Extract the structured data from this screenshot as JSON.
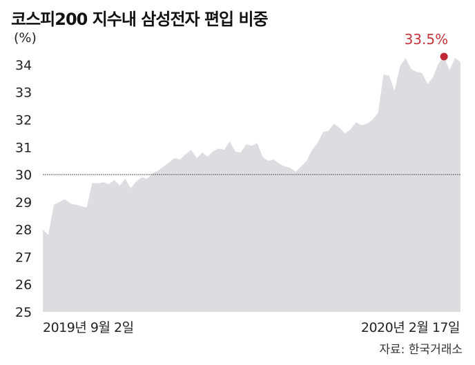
{
  "title": "코스피200 지수내 삼성전자 편입 비중",
  "unit": "(%)",
  "source": "자료: 한국거래소",
  "colors": {
    "area": "#dcdde0",
    "highlight": "#c02833",
    "reference": "#555555"
  },
  "chart_data": {
    "type": "area",
    "ylim": [
      25,
      34.6
    ],
    "yticks": [
      25,
      26,
      27,
      28,
      29,
      30,
      31,
      32,
      33,
      34
    ],
    "reference_line": 30,
    "x_first_label": "2019년 9월 2일",
    "x_last_label": "2020년 2월 17일",
    "highlight_label": "33.5%",
    "grid": false,
    "values": [
      28.0,
      27.8,
      28.9,
      29.0,
      29.1,
      28.95,
      28.9,
      28.85,
      28.8,
      29.7,
      29.68,
      29.72,
      29.65,
      29.8,
      29.6,
      29.85,
      29.5,
      29.75,
      29.9,
      29.85,
      30.05,
      30.15,
      30.3,
      30.45,
      30.6,
      30.55,
      30.75,
      30.9,
      30.6,
      30.8,
      30.65,
      30.85,
      30.95,
      30.9,
      31.2,
      30.85,
      30.8,
      31.1,
      31.05,
      31.15,
      30.65,
      30.5,
      30.55,
      30.4,
      30.3,
      30.25,
      30.1,
      30.3,
      30.5,
      30.9,
      31.15,
      31.55,
      31.6,
      31.85,
      31.7,
      31.5,
      31.65,
      31.9,
      31.8,
      31.85,
      32.0,
      32.25,
      33.65,
      33.6,
      33.05,
      33.95,
      34.25,
      33.85,
      33.75,
      33.7,
      33.3,
      33.55,
      34.05,
      34.3,
      33.8,
      34.25,
      34.1
    ]
  }
}
